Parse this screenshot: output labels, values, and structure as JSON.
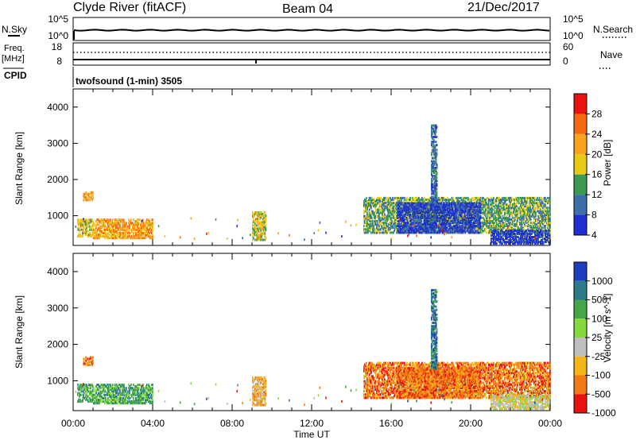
{
  "header": {
    "station": "Clyde River (fitACF)",
    "beam": "Beam 04",
    "date": "21/Dec/2017"
  },
  "strip_labels": {
    "nsky": "N.Sky",
    "nsearch": "N.Search",
    "freq_line1": "Freq.",
    "freq_line2": "[MHz]",
    "cpid": "CPID",
    "nave": "Nave",
    "left_ticks_top": [
      "10^5",
      "10^0"
    ],
    "right_ticks_top": [
      "10^5",
      "10^0"
    ],
    "left_ticks_mid": [
      "18",
      "8"
    ],
    "right_ticks_mid": [
      "60",
      "0"
    ]
  },
  "program": "twofsound (1-min) 3505",
  "panels": {
    "power_ylabel": "Slant Range [km]",
    "velocity_ylabel": "Slant Range [km]",
    "xlabel": "Time UT"
  },
  "colorbars": {
    "power": {
      "label": "Power [dB]",
      "ticks": [
        "28",
        "24",
        "20",
        "16",
        "12",
        "8",
        "4"
      ],
      "colors": [
        "#e8130f",
        "#f56a10",
        "#f9a31d",
        "#e8c915",
        "#3a9a52",
        "#3d6ea9",
        "#1f2ed1"
      ]
    },
    "velocity": {
      "label": "Velocity [m s^-1]",
      "ticks": [
        "1000",
        "500",
        "100",
        "25",
        "-25",
        "-100",
        "-500",
        "-1000"
      ],
      "colors": [
        "#1d3fbf",
        "#2d7a8a",
        "#44a848",
        "#85d93a",
        "#bfbfbf",
        "#f5b516",
        "#f07a14",
        "#e8130f"
      ]
    }
  },
  "chart_data": [
    {
      "type": "heatmap",
      "title": "Power",
      "ylabel": "Slant Range [km]",
      "xlabel": "Time UT",
      "x_ticks": [
        "00:00",
        "04:00",
        "08:00",
        "12:00",
        "16:00",
        "20:00",
        "00:00"
      ],
      "y_ticks": [
        1000,
        2000,
        3000,
        4000
      ],
      "xlim_hours": [
        0,
        24
      ],
      "ylim_km": [
        180,
        4500
      ],
      "colorbar_label": "Power [dB]",
      "colorbar_ticks": [
        4,
        8,
        12,
        16,
        20,
        24,
        28
      ],
      "regions": [
        {
          "t0": 0.2,
          "t1": 1.0,
          "r0": 400,
          "r1": 900,
          "level": 3
        },
        {
          "t0": 1.0,
          "t1": 4.0,
          "r0": 350,
          "r1": 900,
          "level": 2
        },
        {
          "t0": 0.5,
          "t1": 1.0,
          "r0": 1400,
          "r1": 1650,
          "level": 2
        },
        {
          "t0": 9.0,
          "t1": 9.7,
          "r0": 300,
          "r1": 1100,
          "level": 3
        },
        {
          "t0": 14.6,
          "t1": 24.0,
          "r0": 500,
          "r1": 1500,
          "level": 4
        },
        {
          "t0": 16.3,
          "t1": 20.5,
          "r0": 500,
          "r1": 1350,
          "level": 6
        },
        {
          "t0": 21.0,
          "t1": 24.0,
          "r0": 200,
          "r1": 600,
          "level": 6
        },
        {
          "t0": 18.0,
          "t1": 18.3,
          "r0": 1300,
          "r1": 3500,
          "level": 5
        }
      ]
    },
    {
      "type": "heatmap",
      "title": "Velocity",
      "ylabel": "Slant Range [km]",
      "xlabel": "Time UT",
      "x_ticks": [
        "00:00",
        "04:00",
        "08:00",
        "12:00",
        "16:00",
        "20:00",
        "00:00"
      ],
      "y_ticks": [
        1000,
        2000,
        3000,
        4000
      ],
      "xlim_hours": [
        0,
        24
      ],
      "ylim_km": [
        180,
        4500
      ],
      "colorbar_label": "Velocity [m s^-1]",
      "colorbar_ticks": [
        1000,
        500,
        100,
        25,
        -25,
        -100,
        -500,
        -1000
      ],
      "regions": [
        {
          "t0": 0.2,
          "t1": 1.0,
          "r0": 400,
          "r1": 900,
          "level": 2
        },
        {
          "t0": 1.0,
          "t1": 4.0,
          "r0": 350,
          "r1": 900,
          "level": 2
        },
        {
          "t0": 0.5,
          "t1": 1.0,
          "r0": 1400,
          "r1": 1650,
          "level": 6
        },
        {
          "t0": 9.0,
          "t1": 9.7,
          "r0": 300,
          "r1": 1100,
          "level": 5
        },
        {
          "t0": 14.6,
          "t1": 24.0,
          "r0": 500,
          "r1": 1500,
          "level": 6
        },
        {
          "t0": 16.3,
          "t1": 20.5,
          "r0": 500,
          "r1": 1350,
          "level": 6
        },
        {
          "t0": 21.0,
          "t1": 24.0,
          "r0": 200,
          "r1": 600,
          "level": 4
        },
        {
          "t0": 18.0,
          "t1": 18.3,
          "r0": 1300,
          "r1": 3500,
          "level": 1
        }
      ]
    }
  ]
}
